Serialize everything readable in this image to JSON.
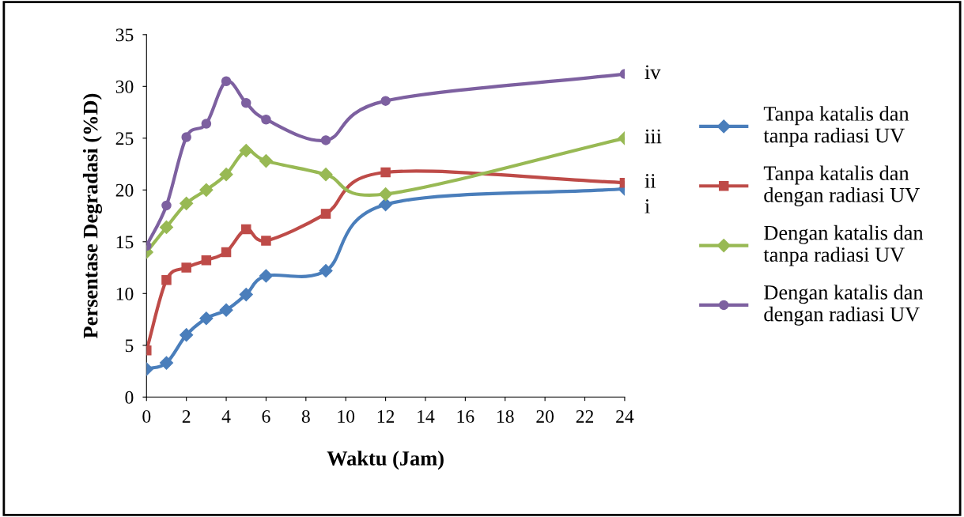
{
  "chart_data": {
    "type": "line",
    "xlabel": "Waktu (Jam)",
    "ylabel": "Persentase Degradasi (%D)",
    "x": [
      0,
      1,
      2,
      3,
      4,
      5,
      6,
      9,
      12,
      24
    ],
    "series": [
      {
        "name": "Tanpa katalis dan\ntanpa radiasi UV",
        "color": "#4a7ebb",
        "marker": "diamond",
        "values": [
          2.7,
          3.3,
          6.0,
          7.6,
          8.4,
          9.9,
          11.7,
          12.2,
          18.6,
          20.1
        ]
      },
      {
        "name": "Tanpa katalis dan\ndengan radiasi UV",
        "color": "#be4b48",
        "marker": "square",
        "values": [
          4.5,
          11.3,
          12.5,
          13.2,
          14.0,
          16.2,
          15.1,
          17.7,
          21.7,
          20.7
        ]
      },
      {
        "name": "Dengan katalis dan\ntanpa radiasi UV",
        "color": "#98b954",
        "marker": "diamond",
        "values": [
          14.0,
          16.4,
          18.7,
          20.0,
          21.5,
          23.8,
          22.8,
          21.5,
          19.6,
          25.0
        ]
      },
      {
        "name": "Dengan katalis dan\ndengan radiasi UV",
        "color": "#7d60a0",
        "marker": "circle",
        "values": [
          14.6,
          18.5,
          25.1,
          26.4,
          30.5,
          28.4,
          26.8,
          24.8,
          28.6,
          31.2
        ]
      }
    ],
    "xlim": [
      0,
      24
    ],
    "xticks": [
      0,
      2,
      4,
      6,
      8,
      10,
      12,
      14,
      16,
      18,
      20,
      22,
      24
    ],
    "ylim": [
      0,
      35
    ],
    "yticks": [
      0,
      5,
      10,
      15,
      20,
      25,
      30,
      35
    ],
    "annotations": [
      "iv",
      "iii",
      "ii",
      "i"
    ],
    "legend": "right",
    "grid": false
  }
}
